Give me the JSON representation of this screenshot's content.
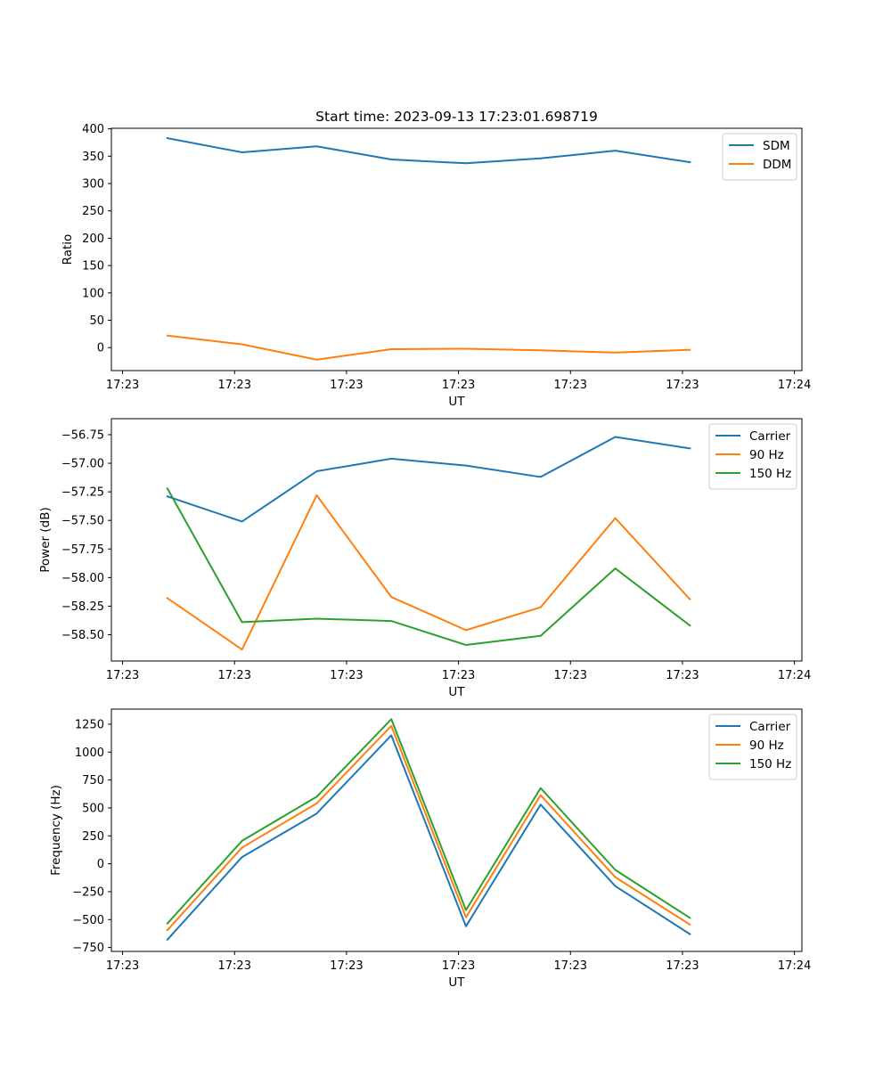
{
  "chart_data": [
    {
      "type": "line",
      "title": "Start time: 2023-09-13 17:23:01.698719",
      "xlabel": "UT",
      "ylabel": "Ratio",
      "x": [
        0,
        1,
        2,
        3,
        4,
        5,
        6,
        7
      ],
      "xlim": [
        -0.75,
        8.5
      ],
      "xticks": [
        -0.6,
        0.9,
        2.4,
        3.9,
        5.4,
        6.9,
        8.4
      ],
      "xtick_labels": [
        "17:23",
        "17:23",
        "17:23",
        "17:23",
        "17:23",
        "17:23",
        "17:24"
      ],
      "ylim": [
        -42,
        401
      ],
      "yticks": [
        0,
        50,
        100,
        150,
        200,
        250,
        300,
        350,
        400
      ],
      "ytick_labels": [
        "0",
        "50",
        "100",
        "150",
        "200",
        "250",
        "300",
        "350",
        "400"
      ],
      "legend_position": "top-right",
      "series": [
        {
          "name": "SDM",
          "color": "#1f77b4",
          "values": [
            383,
            357,
            368,
            344,
            337,
            346,
            360,
            339
          ]
        },
        {
          "name": "DDM",
          "color": "#ff7f0e",
          "values": [
            22,
            6,
            -22,
            -3,
            -2,
            -5,
            -9,
            -4
          ]
        }
      ]
    },
    {
      "type": "line",
      "title": "",
      "xlabel": "UT",
      "ylabel": "Power (dB)",
      "x": [
        0,
        1,
        2,
        3,
        4,
        5,
        6,
        7
      ],
      "xlim": [
        -0.75,
        8.5
      ],
      "xticks": [
        -0.6,
        0.9,
        2.4,
        3.9,
        5.4,
        6.9,
        8.4
      ],
      "xtick_labels": [
        "17:23",
        "17:23",
        "17:23",
        "17:23",
        "17:23",
        "17:23",
        "17:24"
      ],
      "ylim": [
        -58.73,
        -56.61
      ],
      "yticks": [
        -58.5,
        -58.25,
        -58.0,
        -57.75,
        -57.5,
        -57.25,
        -57.0,
        -56.75
      ],
      "ytick_labels": [
        "−58.50",
        "−58.25",
        "−58.00",
        "−57.75",
        "−57.50",
        "−57.25",
        "−57.00",
        "−56.75"
      ],
      "legend_position": "top-right",
      "series": [
        {
          "name": "Carrier",
          "color": "#1f77b4",
          "values": [
            -57.29,
            -57.51,
            -57.07,
            -56.96,
            -57.02,
            -57.12,
            -56.77,
            -56.87
          ]
        },
        {
          "name": "90 Hz",
          "color": "#ff7f0e",
          "values": [
            -58.18,
            -58.63,
            -57.28,
            -58.17,
            -58.46,
            -58.26,
            -57.48,
            -58.19
          ]
        },
        {
          "name": "150 Hz",
          "color": "#2ca02c",
          "values": [
            -57.22,
            -58.39,
            -58.36,
            -58.38,
            -58.59,
            -58.51,
            -57.92,
            -58.42
          ]
        }
      ]
    },
    {
      "type": "line",
      "title": "",
      "xlabel": "UT",
      "ylabel": "Frequency (Hz)",
      "x": [
        0,
        1,
        2,
        3,
        4,
        5,
        6,
        7
      ],
      "xlim": [
        -0.75,
        8.5
      ],
      "xticks": [
        -0.6,
        0.9,
        2.4,
        3.9,
        5.4,
        6.9,
        8.4
      ],
      "xtick_labels": [
        "17:23",
        "17:23",
        "17:23",
        "17:23",
        "17:23",
        "17:23",
        "17:24"
      ],
      "ylim": [
        -785,
        1385
      ],
      "yticks": [
        -750,
        -500,
        -250,
        0,
        250,
        500,
        750,
        1000,
        1250
      ],
      "ytick_labels": [
        "−750",
        "−500",
        "−250",
        "0",
        "250",
        "500",
        "750",
        "1000",
        "1250"
      ],
      "legend_position": "top-right",
      "series": [
        {
          "name": "Carrier",
          "color": "#1f77b4",
          "values": [
            -680,
            60,
            450,
            1150,
            -560,
            530,
            -200,
            -630
          ]
        },
        {
          "name": "90 Hz",
          "color": "#ff7f0e",
          "values": [
            -595,
            145,
            540,
            1235,
            -480,
            615,
            -120,
            -545
          ]
        },
        {
          "name": "150 Hz",
          "color": "#2ca02c",
          "values": [
            -535,
            205,
            600,
            1295,
            -415,
            678,
            -55,
            -485
          ]
        }
      ]
    }
  ]
}
